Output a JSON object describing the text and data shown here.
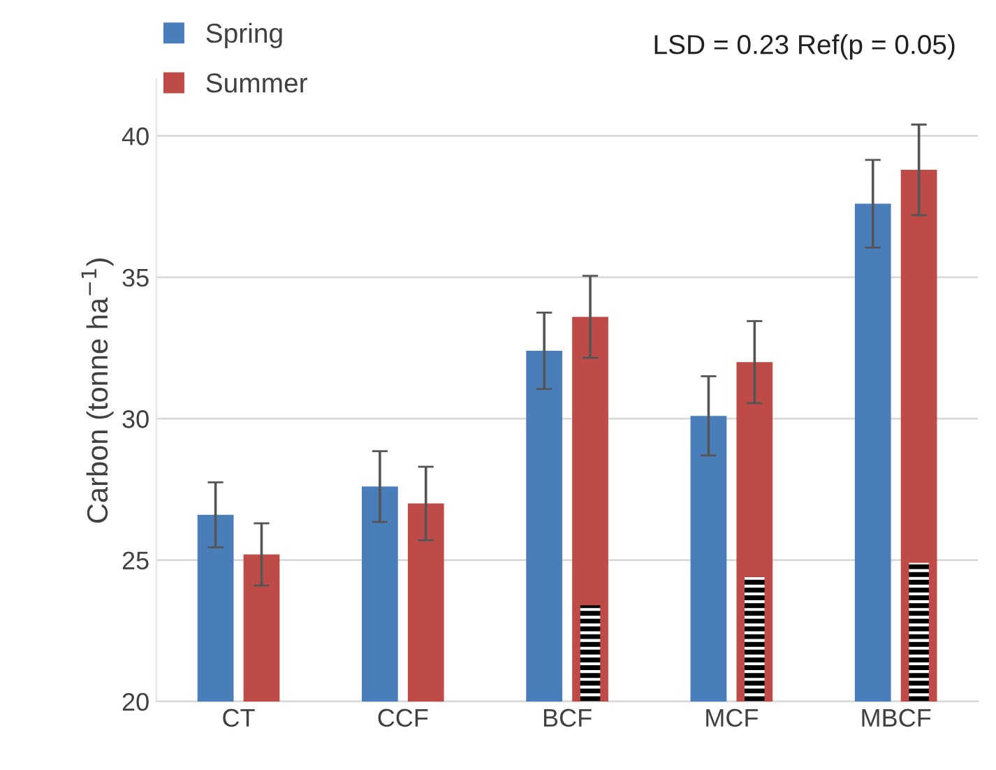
{
  "chart_data": {
    "type": "bar",
    "ylabel": "Carbon (tonne ha$^{−1}$)",
    "categories": [
      "CT",
      "CCF",
      "BCF",
      "MCF",
      "MBCF"
    ],
    "series": [
      {
        "name": "Spring",
        "color": "#4a7ebb",
        "values": [
          26.6,
          27.6,
          32.4,
          30.1,
          37.6
        ],
        "errors": [
          1.15,
          1.25,
          1.35,
          1.4,
          1.55
        ]
      },
      {
        "name": "Summer",
        "color": "#be4b48",
        "values": [
          25.2,
          27.0,
          33.6,
          32.0,
          38.8
        ],
        "errors": [
          1.1,
          1.3,
          1.45,
          1.45,
          1.6
        ]
      },
      {
        "type": "bar",
        "color": "#000000",
        "values": [
          null,
          null,
          23.4,
          24.4,
          24.9
        ]
      }
    ],
    "ylim": [
      20,
      42
    ],
    "yticks": [
      20,
      25,
      30,
      35,
      40
    ],
    "grid": "y",
    "legend": "top left",
    "annotations": [
      "LSD = 0.23 Ref(p = 0.05)"
    ]
  }
}
